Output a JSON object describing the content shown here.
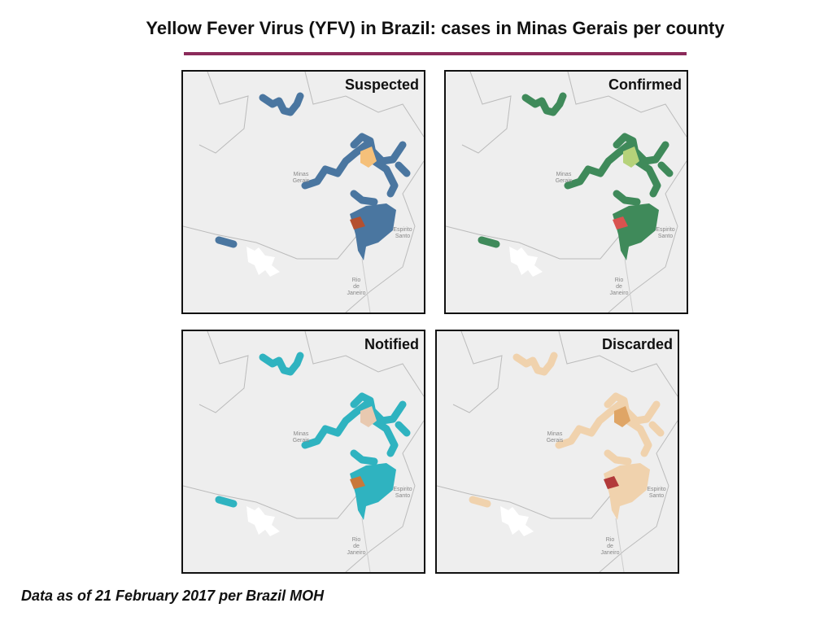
{
  "title": "Yellow Fever Virus (YFV) in Brazil: cases in Minas Gerais per county",
  "panels": [
    {
      "label": "Suspected"
    },
    {
      "label": "Confirmed"
    },
    {
      "label": "Notified"
    },
    {
      "label": "Discarded"
    }
  ],
  "map_labels": {
    "minas_gerais": [
      "Minas",
      "Gerais"
    ],
    "espirito_santo": [
      "Espirito",
      "Santo"
    ],
    "rio_de_janeiro": [
      "Rio",
      "de",
      "Janeiro"
    ]
  },
  "footnote": "Data as of 21 February 2017 per Brazil MOH"
}
